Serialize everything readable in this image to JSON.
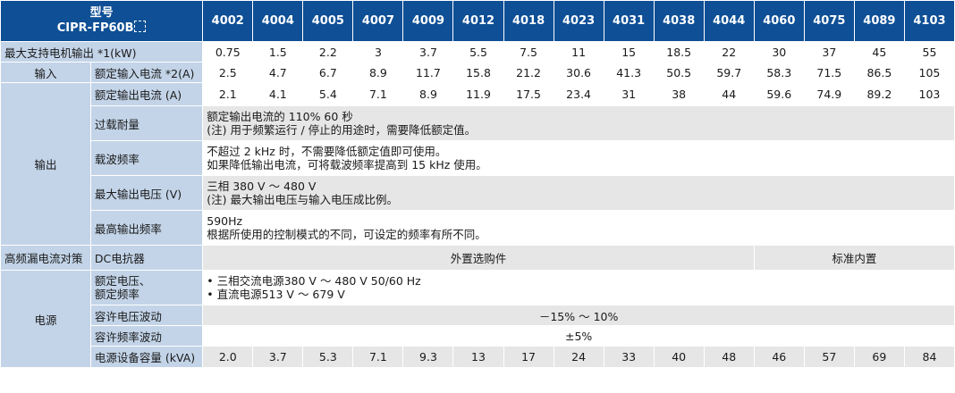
{
  "header": {
    "title_line1": "型号",
    "title_line2": "CIPR-FP60B",
    "models": [
      "4002",
      "4004",
      "4005",
      "4007",
      "4009",
      "4012",
      "4018",
      "4023",
      "4031",
      "4038",
      "4044",
      "4060",
      "4075",
      "4089",
      "4103"
    ]
  },
  "rows": {
    "max_motor": {
      "label": "最大支持电机输出 *1(kW)",
      "values": [
        "0.75",
        "1.5",
        "2.2",
        "3",
        "3.7",
        "5.5",
        "7.5",
        "11",
        "15",
        "18.5",
        "22",
        "30",
        "37",
        "45",
        "55"
      ]
    },
    "input": {
      "cat": "输入",
      "label": "额定输入电流 *2(A)",
      "values": [
        "2.5",
        "4.7",
        "6.7",
        "8.9",
        "11.7",
        "15.8",
        "21.2",
        "30.6",
        "41.3",
        "50.5",
        "59.7",
        "58.3",
        "71.5",
        "86.5",
        "105"
      ]
    },
    "output": {
      "cat": "输出",
      "rated_current": {
        "label": "额定输出电流 (A)",
        "values": [
          "2.1",
          "4.1",
          "5.4",
          "7.1",
          "8.9",
          "11.9",
          "17.5",
          "23.4",
          "31",
          "38",
          "44",
          "59.6",
          "74.9",
          "89.2",
          "103"
        ]
      },
      "overload": {
        "label": "过载耐量",
        "line1": "额定输出电流的 110% 60 秒",
        "line2": "(注) 用于频繁运行 / 停止的用途时，需要降低额定值。"
      },
      "carrier": {
        "label": "载波频率",
        "line1": "不超过 2 kHz 时，不需要降低额定值即可使用。",
        "line2": "如果降低输出电流，可将载波频率提高到 15 kHz 使用。"
      },
      "max_voltage": {
        "label": "最大输出电压 (V)",
        "line1": "三相 380 V ～ 480 V",
        "line2": "(注) 最大输出电压与输入电压成比例。"
      },
      "max_freq": {
        "label": "最高输出频率",
        "line1": "590Hz",
        "line2": "根据所使用的控制模式的不同，可设定的频率有所不同。"
      }
    },
    "harmonic": {
      "cat": "高频漏电流对策",
      "label": "DC电抗器",
      "option": "外置选购件",
      "standard": "标准内置"
    },
    "power": {
      "cat": "电源",
      "rated": {
        "label_line1": "额定电压、",
        "label_line2": "额定频率",
        "line1": "• 三相交流电源380 V ～ 480 V 50/60 Hz",
        "line2": "• 直流电源513 V ～ 679 V"
      },
      "voltage_fluct": {
        "label": "容许电压波动",
        "value": "－15% ～ 10%"
      },
      "freq_fluct": {
        "label": "容许频率波动",
        "value": "±5%"
      },
      "capacity": {
        "label": "电源设备容量 (kVA)",
        "values": [
          "2.0",
          "3.7",
          "5.3",
          "7.1",
          "9.3",
          "13",
          "17",
          "24",
          "33",
          "40",
          "48",
          "46",
          "57",
          "69",
          "84"
        ]
      }
    }
  },
  "colors": {
    "header": "#0e4f95",
    "category": "#c3d4e8",
    "grey": "#e6e6e6"
  }
}
